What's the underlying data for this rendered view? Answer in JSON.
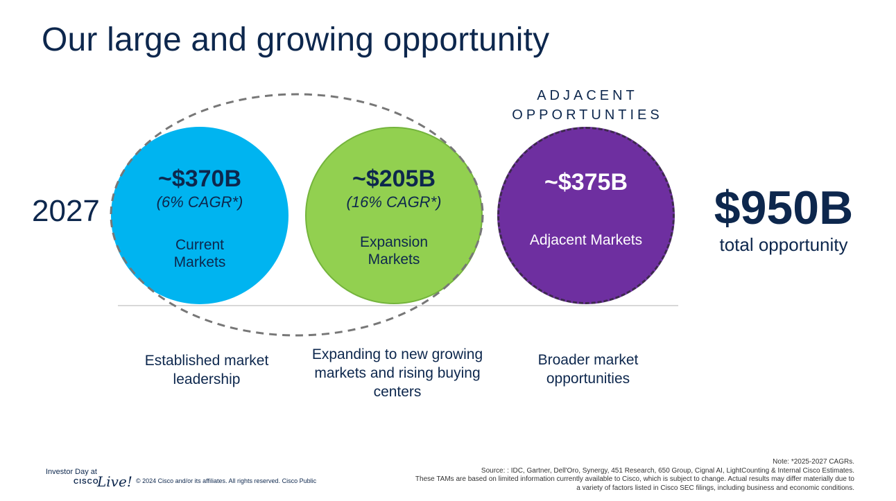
{
  "title": "Our large and growing opportunity",
  "year": "2027",
  "adjacent_heading": [
    "ADJACENT",
    "OPPORTUNTIES"
  ],
  "circles": [
    {
      "value": "~$370B",
      "cagr": "(6% CAGR*)",
      "label": "Current Markets",
      "color": "#00b4f0"
    },
    {
      "value": "~$205B",
      "cagr": "(16% CAGR*)",
      "label": "Expansion Markets",
      "color": "#92d050"
    },
    {
      "value": "~$375B",
      "cagr": "",
      "label": "Adjacent Markets",
      "color": "#6e2fa0"
    }
  ],
  "total": {
    "amount": "$950B",
    "label": "total opportunity"
  },
  "descriptions": [
    "Established market leadership",
    "Expanding to new growing markets and rising buying centers",
    "Broader market opportunities"
  ],
  "footer": {
    "logo_line1": "Investor Day at",
    "logo_brand": "CISCO",
    "logo_script": "Live!",
    "copyright": "© 2024 Cisco and/or its affiliates. All rights reserved. Cisco Public",
    "note": "Note: *2025-2027 CAGRs.",
    "source": "Source: : IDC, Gartner, Dell'Oro, Synergy, 451 Research, 650 Group, Cignal AI, LightCounting & Internal Cisco Estimates.",
    "disclaimer": "These TAMs are based on limited information currently available to Cisco, which is subject to change. Actual results may differ materially due to a variety of factors listed in Cisco SEC filings, including business and economic conditions."
  },
  "colors": {
    "navy": "#0d274d",
    "dashed": "#777777",
    "baseline": "#cccccc"
  }
}
